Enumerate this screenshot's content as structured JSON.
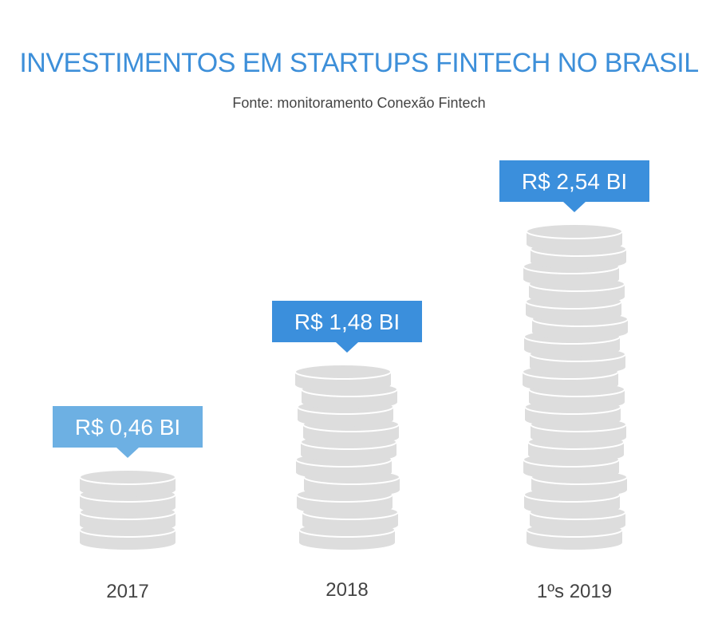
{
  "colors": {
    "title": "#3d8fd9",
    "subtitle": "#444444",
    "category_text": "#444444",
    "coin_fill": "#dddddd",
    "coin_edge": "#ffffff",
    "label_light": "#6db0e3",
    "label_dark": "#3b8fdc",
    "label_text": "#ffffff"
  },
  "chart_data": {
    "type": "bar",
    "title": "INVESTIMENTOS EM STARTUPS FINTECH NO BRASIL",
    "subtitle": "Fonte: monitoramento Conexão Fintech",
    "categories": [
      "2017",
      "2018",
      "1ºs 2019"
    ],
    "values": [
      0.46,
      1.48,
      2.54
    ],
    "value_labels": [
      "R$ 0,46 BI",
      "R$ 1,48 BI",
      "R$ 2,54 BI"
    ],
    "coin_counts": [
      4,
      10,
      18
    ],
    "label_styles": [
      "light",
      "dark",
      "dark"
    ],
    "xlabel": "",
    "ylabel": ""
  }
}
